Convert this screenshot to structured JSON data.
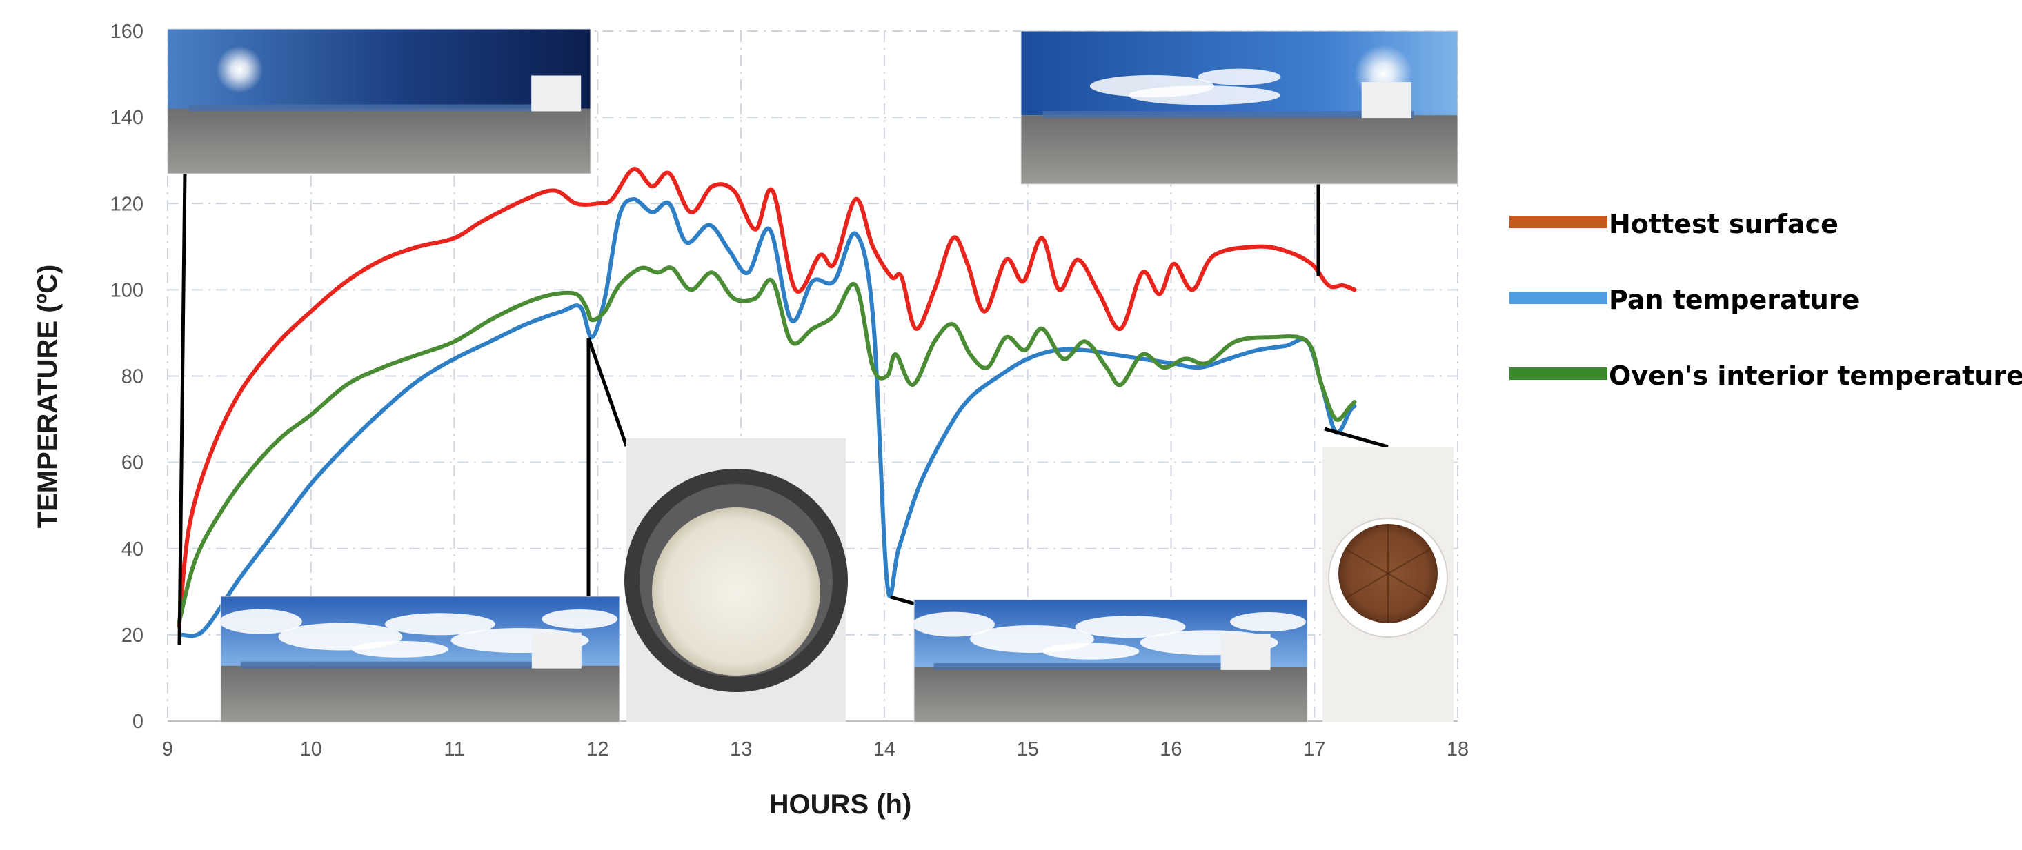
{
  "chart_data": {
    "type": "line",
    "title": "",
    "xlabel": "HOURS (h)",
    "ylabel": "TEMPERATURE (ºC)",
    "xlim": [
      9,
      18
    ],
    "ylim": [
      0,
      160
    ],
    "x_ticks": [
      "9",
      "10",
      "11",
      "12",
      "13",
      "14",
      "15",
      "16",
      "17",
      "18"
    ],
    "y_ticks": [
      "0",
      "20",
      "40",
      "60",
      "80",
      "100",
      "120",
      "140",
      "160"
    ],
    "grid": true,
    "legend_position": "right",
    "legend": [
      {
        "label": "Hottest surface",
        "swatch_color": "#c55a1e"
      },
      {
        "label": "Pan temperature",
        "swatch_color": "#4f9fe0"
      },
      {
        "label": "Oven's interior temperature",
        "swatch_color": "#3a8a2c"
      }
    ],
    "series": [
      {
        "name": "Hottest surface",
        "color": "#e8241c",
        "points": [
          [
            9.08,
            22
          ],
          [
            9.15,
            45
          ],
          [
            9.3,
            62
          ],
          [
            9.5,
            76
          ],
          [
            9.75,
            87
          ],
          [
            10,
            95
          ],
          [
            10.25,
            102
          ],
          [
            10.5,
            107
          ],
          [
            10.75,
            110
          ],
          [
            11,
            112
          ],
          [
            11.2,
            116
          ],
          [
            11.5,
            121
          ],
          [
            11.7,
            123
          ],
          [
            11.85,
            120
          ],
          [
            12.0,
            120
          ],
          [
            12.1,
            121
          ],
          [
            12.25,
            128
          ],
          [
            12.38,
            124
          ],
          [
            12.5,
            127
          ],
          [
            12.65,
            118
          ],
          [
            12.8,
            124
          ],
          [
            12.95,
            123
          ],
          [
            13.1,
            114
          ],
          [
            13.22,
            123
          ],
          [
            13.38,
            100
          ],
          [
            13.55,
            108
          ],
          [
            13.65,
            106
          ],
          [
            13.8,
            121
          ],
          [
            13.92,
            110
          ],
          [
            14.05,
            103
          ],
          [
            14.12,
            103
          ],
          [
            14.22,
            91
          ],
          [
            14.35,
            100
          ],
          [
            14.48,
            112
          ],
          [
            14.58,
            106
          ],
          [
            14.7,
            95
          ],
          [
            14.85,
            107
          ],
          [
            14.97,
            102
          ],
          [
            15.1,
            112
          ],
          [
            15.22,
            100
          ],
          [
            15.35,
            107
          ],
          [
            15.5,
            99
          ],
          [
            15.65,
            91
          ],
          [
            15.8,
            104
          ],
          [
            15.92,
            99
          ],
          [
            16.02,
            106
          ],
          [
            16.15,
            100
          ],
          [
            16.3,
            108
          ],
          [
            16.6,
            110
          ],
          [
            16.8,
            109
          ],
          [
            16.98,
            106
          ],
          [
            17.1,
            101
          ],
          [
            17.2,
            101
          ],
          [
            17.28,
            100
          ]
        ]
      },
      {
        "name": "Pan temperature",
        "color": "#2e7fc5",
        "points": [
          [
            9.1,
            20
          ],
          [
            9.25,
            21
          ],
          [
            9.5,
            33
          ],
          [
            9.75,
            44
          ],
          [
            10,
            55
          ],
          [
            10.25,
            64
          ],
          [
            10.5,
            72
          ],
          [
            10.75,
            79
          ],
          [
            11,
            84
          ],
          [
            11.25,
            88
          ],
          [
            11.5,
            92
          ],
          [
            11.75,
            95
          ],
          [
            11.88,
            96
          ],
          [
            11.96,
            89
          ],
          [
            12.05,
            98
          ],
          [
            12.15,
            117
          ],
          [
            12.25,
            121
          ],
          [
            12.38,
            118
          ],
          [
            12.5,
            120
          ],
          [
            12.62,
            111
          ],
          [
            12.78,
            115
          ],
          [
            12.92,
            109
          ],
          [
            13.05,
            104
          ],
          [
            13.2,
            114
          ],
          [
            13.35,
            93
          ],
          [
            13.5,
            102
          ],
          [
            13.65,
            102
          ],
          [
            13.8,
            113
          ],
          [
            13.92,
            94
          ],
          [
            14.02,
            32
          ],
          [
            14.1,
            40
          ],
          [
            14.25,
            55
          ],
          [
            14.45,
            68
          ],
          [
            14.6,
            75
          ],
          [
            14.8,
            80
          ],
          [
            15,
            84
          ],
          [
            15.2,
            86
          ],
          [
            15.4,
            86
          ],
          [
            15.6,
            85
          ],
          [
            15.8,
            84
          ],
          [
            16,
            83
          ],
          [
            16.2,
            82
          ],
          [
            16.4,
            84
          ],
          [
            16.6,
            86
          ],
          [
            16.8,
            87
          ],
          [
            16.95,
            88
          ],
          [
            17.05,
            78
          ],
          [
            17.15,
            67
          ],
          [
            17.25,
            72
          ],
          [
            17.28,
            73
          ]
        ]
      },
      {
        "name": "Oven's interior temperature",
        "color": "#4a8c34",
        "points": [
          [
            9.08,
            23
          ],
          [
            9.2,
            38
          ],
          [
            9.4,
            50
          ],
          [
            9.6,
            59
          ],
          [
            9.8,
            66
          ],
          [
            10,
            71
          ],
          [
            10.25,
            78
          ],
          [
            10.5,
            82
          ],
          [
            10.75,
            85
          ],
          [
            11,
            88
          ],
          [
            11.25,
            93
          ],
          [
            11.5,
            97
          ],
          [
            11.7,
            99
          ],
          [
            11.85,
            99
          ],
          [
            11.92,
            96
          ],
          [
            11.96,
            93
          ],
          [
            12.05,
            95
          ],
          [
            12.15,
            101
          ],
          [
            12.3,
            105
          ],
          [
            12.42,
            104
          ],
          [
            12.52,
            105
          ],
          [
            12.65,
            100
          ],
          [
            12.8,
            104
          ],
          [
            12.95,
            98
          ],
          [
            13.1,
            98
          ],
          [
            13.22,
            102
          ],
          [
            13.35,
            88
          ],
          [
            13.5,
            91
          ],
          [
            13.65,
            94
          ],
          [
            13.8,
            101
          ],
          [
            13.92,
            82
          ],
          [
            14.02,
            80
          ],
          [
            14.08,
            85
          ],
          [
            14.2,
            78
          ],
          [
            14.35,
            88
          ],
          [
            14.48,
            92
          ],
          [
            14.6,
            85
          ],
          [
            14.72,
            82
          ],
          [
            14.85,
            89
          ],
          [
            14.98,
            86
          ],
          [
            15.1,
            91
          ],
          [
            15.25,
            84
          ],
          [
            15.4,
            88
          ],
          [
            15.55,
            82
          ],
          [
            15.65,
            78
          ],
          [
            15.8,
            85
          ],
          [
            15.95,
            82
          ],
          [
            16.1,
            84
          ],
          [
            16.25,
            83
          ],
          [
            16.45,
            88
          ],
          [
            16.7,
            89
          ],
          [
            16.95,
            88
          ],
          [
            17.05,
            78
          ],
          [
            17.15,
            70
          ],
          [
            17.25,
            73
          ],
          [
            17.28,
            74
          ]
        ]
      }
    ]
  },
  "photos": [
    {
      "name": "photo-sky-panorama-sun-left",
      "kind": "panorama-sun-left"
    },
    {
      "name": "photo-sky-panorama-sun-right",
      "kind": "panorama-sun-right"
    },
    {
      "name": "photo-sky-panorama-clouds-morning",
      "kind": "panorama-clouds"
    },
    {
      "name": "photo-cooked-rice-pan",
      "kind": "rice"
    },
    {
      "name": "photo-sky-panorama-clouds-afternoon",
      "kind": "panorama-clouds"
    },
    {
      "name": "photo-baked-cake",
      "kind": "cake"
    }
  ]
}
